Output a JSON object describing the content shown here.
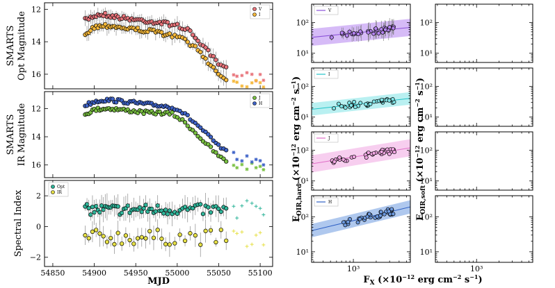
{
  "chart_data": [
    {
      "id": "opt-mag",
      "type": "scatter",
      "ylabel": "SMARTS Opt Magnitude",
      "ylabel_lines": [
        "SMARTS",
        "Opt Magnitude"
      ],
      "xlim": [
        54840,
        55115
      ],
      "ylim": [
        16.9,
        11.6
      ],
      "yticks": [
        "12",
        "14",
        "16"
      ],
      "ytick_values": [
        12,
        14,
        16
      ],
      "legend": [
        "V",
        "I"
      ],
      "series": [
        {
          "name": "V",
          "color": "#e8737a",
          "key": [
            [
              54888,
              12.7
            ],
            [
              54900,
              12.4
            ],
            [
              54910,
              12.3
            ],
            [
              54920,
              12.4
            ],
            [
              54930,
              12.5
            ],
            [
              54945,
              12.6
            ],
            [
              54960,
              12.7
            ],
            [
              54975,
              12.8
            ],
            [
              54990,
              12.9
            ],
            [
              55000,
              13.0
            ],
            [
              55010,
              13.2
            ],
            [
              55020,
              13.6
            ],
            [
              55030,
              14.2
            ],
            [
              55040,
              14.8
            ],
            [
              55050,
              15.4
            ],
            [
              55060,
              15.7
            ],
            [
              55070,
              16.0
            ],
            [
              55080,
              16.1
            ],
            [
              55090,
              16.2
            ],
            [
              55100,
              16.2
            ],
            [
              55105,
              16.3
            ]
          ]
        },
        {
          "name": "I",
          "color": "#f5b83a",
          "key": [
            [
              54888,
              13.5
            ],
            [
              54900,
              13.1
            ],
            [
              54910,
              13.0
            ],
            [
              54920,
              13.0
            ],
            [
              54930,
              13.1
            ],
            [
              54945,
              13.2
            ],
            [
              54960,
              13.3
            ],
            [
              54975,
              13.4
            ],
            [
              54990,
              13.6
            ],
            [
              55000,
              13.7
            ],
            [
              55010,
              13.9
            ],
            [
              55020,
              14.3
            ],
            [
              55030,
              14.8
            ],
            [
              55040,
              15.4
            ],
            [
              55050,
              16.0
            ],
            [
              55060,
              16.3
            ],
            [
              55070,
              16.5
            ],
            [
              55080,
              16.5
            ],
            [
              55090,
              16.6
            ],
            [
              55100,
              16.6
            ],
            [
              55105,
              16.6
            ]
          ]
        }
      ]
    },
    {
      "id": "ir-mag",
      "type": "scatter",
      "ylabel": "SMARTS IR Magnitude",
      "ylabel_lines": [
        "SMARTS",
        "IR Magnitude"
      ],
      "xlim": [
        54840,
        55115
      ],
      "ylim": [
        16.9,
        10.8
      ],
      "yticks": [
        "12",
        "14",
        "16"
      ],
      "ytick_values": [
        12,
        14,
        16
      ],
      "legend": [
        "J",
        "H"
      ],
      "series": [
        {
          "name": "J",
          "color": "#7ac142",
          "key": [
            [
              54888,
              12.4
            ],
            [
              54900,
              12.1
            ],
            [
              54910,
              12.0
            ],
            [
              54920,
              12.0
            ],
            [
              54935,
              12.1
            ],
            [
              54950,
              12.2
            ],
            [
              54965,
              12.3
            ],
            [
              54980,
              12.3
            ],
            [
              54995,
              12.4
            ],
            [
              55005,
              12.8
            ],
            [
              55015,
              13.3
            ],
            [
              55025,
              13.9
            ],
            [
              55035,
              14.5
            ],
            [
              55045,
              15.1
            ],
            [
              55055,
              15.6
            ],
            [
              55065,
              15.9
            ],
            [
              55075,
              16.1
            ],
            [
              55085,
              16.1
            ],
            [
              55095,
              16.1
            ],
            [
              55105,
              16.2
            ]
          ]
        },
        {
          "name": "H",
          "color": "#3f63c8",
          "key": [
            [
              54888,
              11.8
            ],
            [
              54900,
              11.5
            ],
            [
              54910,
              11.4
            ],
            [
              54920,
              11.4
            ],
            [
              54935,
              11.5
            ],
            [
              54950,
              11.6
            ],
            [
              54965,
              11.7
            ],
            [
              54980,
              11.8
            ],
            [
              54995,
              11.9
            ],
            [
              55005,
              12.2
            ],
            [
              55015,
              12.7
            ],
            [
              55025,
              13.2
            ],
            [
              55035,
              13.8
            ],
            [
              55045,
              14.4
            ],
            [
              55055,
              14.9
            ],
            [
              55065,
              15.3
            ],
            [
              55075,
              15.5
            ],
            [
              55085,
              15.6
            ],
            [
              55095,
              15.7
            ],
            [
              55105,
              15.8
            ]
          ]
        }
      ]
    },
    {
      "id": "spectral-index",
      "type": "scatter",
      "ylabel": "Spectral Index",
      "xlabel": "MJD",
      "xlim": [
        54840,
        55115
      ],
      "ylim": [
        -2.6,
        3.0
      ],
      "yticks": [
        "2",
        "0",
        "−2"
      ],
      "ytick_values": [
        2,
        0,
        -2
      ],
      "xticks": [
        "54850",
        "54900",
        "54950",
        "55000",
        "55050",
        "55100"
      ],
      "xtick_values": [
        54850,
        54900,
        54950,
        55000,
        55050,
        55100
      ],
      "legend": [
        "Opt",
        "IR"
      ],
      "series": [
        {
          "name": "Opt",
          "color": "#2fb59a",
          "mean": 1.1,
          "spread": 0.35
        },
        {
          "name": "IR",
          "color": "#e6e045",
          "mean": -0.7,
          "spread": 0.5
        }
      ]
    },
    {
      "id": "hard-v",
      "type": "scatter",
      "panel": "hard",
      "band": "V",
      "fit_color": "#8a4fd8",
      "band_color": "#b584f0",
      "y_at_left": 33,
      "y_at_right": 62,
      "band_factor": 1.9,
      "yticks": [
        "10¹",
        "10²"
      ]
    },
    {
      "id": "hard-i",
      "type": "scatter",
      "panel": "hard",
      "band": "I",
      "fit_color": "#22c3c8",
      "band_color": "#7fe3e6",
      "y_at_left": 18,
      "y_at_right": 36,
      "band_factor": 1.6,
      "yticks": [
        "10¹",
        "10²"
      ]
    },
    {
      "id": "hard-j",
      "type": "scatter",
      "panel": "hard",
      "band": "J",
      "fit_color": "#e06fc8",
      "band_color": "#f0a6e2",
      "y_at_left": 36,
      "y_at_right": 100,
      "band_factor": 1.9,
      "yticks": [
        "10¹",
        "10²"
      ]
    },
    {
      "id": "hard-h",
      "type": "scatter",
      "panel": "hard",
      "band": "H",
      "fit_color": "#2d5fc4",
      "band_color": "#6d9ae0",
      "y_at_left": 40,
      "y_at_right": 150,
      "band_factor": 1.55,
      "yticks": [
        "10¹",
        "10²"
      ]
    }
  ],
  "flux_axes": {
    "ylabel_hard": "F_OIR,hard (×10⁻¹² erg cm⁻² s⁻¹)",
    "ylabel_soft": "F_OIR,soft (×10⁻¹² erg cm⁻² s⁻¹)",
    "xlabel": "F_X (×10⁻¹² erg cm⁻² s⁻¹)",
    "xtick": "10³",
    "ytick_labels": [
      "10¹",
      "10²"
    ],
    "x_log_range": [
      2.45,
      3.75
    ],
    "y_log_range": [
      0.7,
      2.6
    ]
  },
  "labels": {
    "left_xlabel": "MJD",
    "y_hard_main": "F",
    "y_hard_sub": "OIR,hard",
    "y_hard_unit": "(×10",
    "y_hard_exp": "−12",
    "y_hard_rest": "erg cm",
    "y_hard_exp2": "−2",
    "y_hard_s": "s",
    "y_hard_exp3": "−1",
    "y_hard_close": ")",
    "y_soft_sub": "OIR,soft",
    "x_main": "F",
    "x_sub": "X",
    "x_unit": "(×10",
    "x_exp": "−12",
    "x_rest": "erg cm",
    "x_exp2": "−2",
    "x_s": "s",
    "x_exp3": "−1",
    "x_close": ")"
  }
}
